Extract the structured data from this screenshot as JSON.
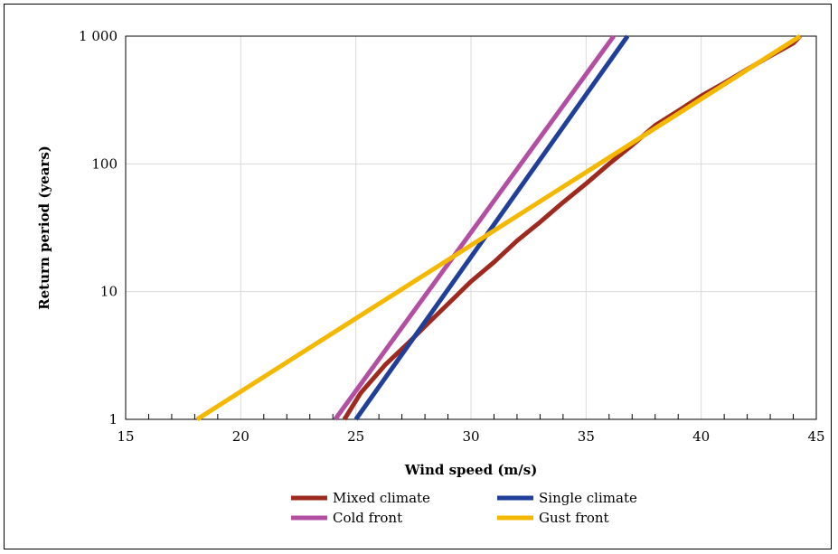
{
  "chart_data": {
    "type": "line",
    "xlabel": "Wind speed (m/s)",
    "ylabel": "Return period (years)",
    "xlim": [
      15,
      45
    ],
    "ylim": [
      1,
      1000
    ],
    "yscale": "log",
    "x_ticks": [
      "15",
      "20",
      "25",
      "30",
      "35",
      "40",
      "45"
    ],
    "y_ticks": [
      "1",
      "10",
      "100",
      "1 000"
    ],
    "grid": true,
    "legend_position": "bottom",
    "series": [
      {
        "name": "Mixed climate",
        "color": "#9e2a1f",
        "points": [
          [
            24.5,
            1
          ],
          [
            25.2,
            1.6
          ],
          [
            26.3,
            2.7
          ],
          [
            27.3,
            4
          ],
          [
            28.2,
            5.8
          ],
          [
            29.0,
            8
          ],
          [
            30.0,
            12
          ],
          [
            31.0,
            17
          ],
          [
            32.0,
            25
          ],
          [
            33.0,
            35
          ],
          [
            34.0,
            50
          ],
          [
            35.0,
            70
          ],
          [
            36.0,
            100
          ],
          [
            37.0,
            140
          ],
          [
            38.0,
            200
          ],
          [
            39.0,
            260
          ],
          [
            40.0,
            340
          ],
          [
            41.0,
            430
          ],
          [
            42.0,
            550
          ],
          [
            43.0,
            700
          ],
          [
            44.0,
            880
          ],
          [
            44.3,
            1000
          ]
        ]
      },
      {
        "name": "Single climate",
        "color": "#1f3f99",
        "points": [
          [
            25.0,
            1
          ],
          [
            36.8,
            1000
          ]
        ]
      },
      {
        "name": "Cold front",
        "color": "#b34fa3",
        "points": [
          [
            24.1,
            1
          ],
          [
            36.2,
            1000
          ]
        ]
      },
      {
        "name": "Gust front",
        "color": "#f5b800",
        "points": [
          [
            18.1,
            1
          ],
          [
            44.3,
            1000
          ]
        ]
      }
    ]
  }
}
